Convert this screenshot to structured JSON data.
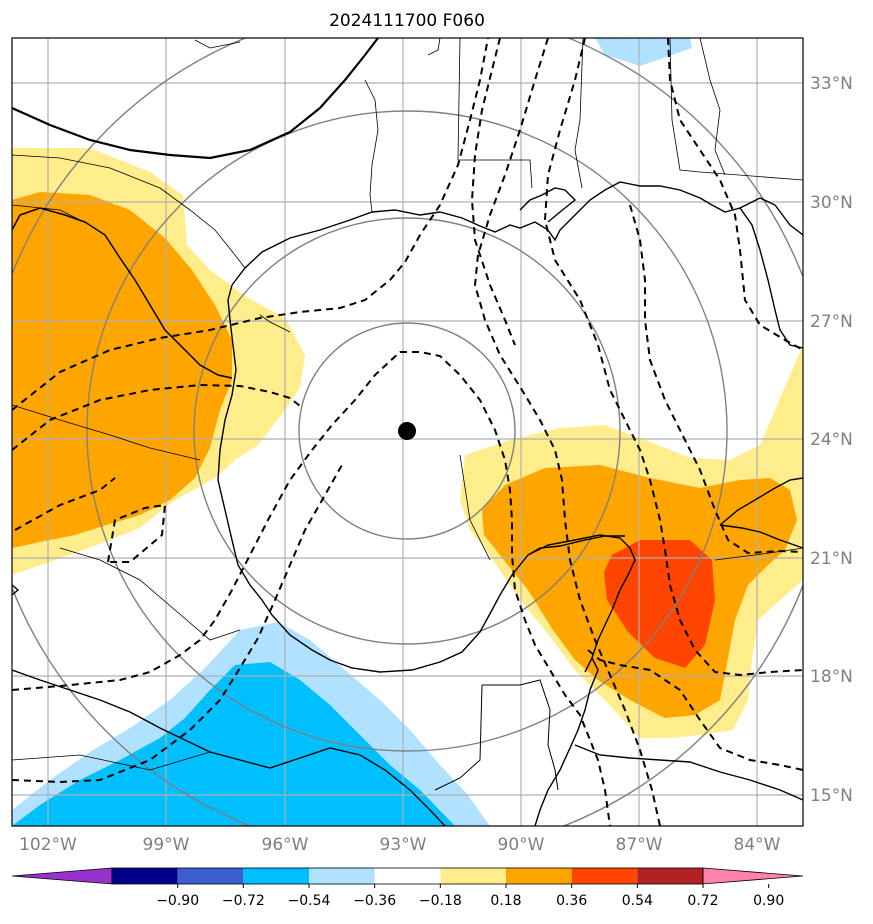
{
  "title": "2024111700 F060",
  "map": {
    "lon_ticks": [
      {
        "lon": -102,
        "label": "102°W"
      },
      {
        "lon": -99,
        "label": "99°W"
      },
      {
        "lon": -96,
        "label": "96°W"
      },
      {
        "lon": -93,
        "label": "93°W"
      },
      {
        "lon": -90,
        "label": "90°W"
      },
      {
        "lon": -87,
        "label": "87°W"
      },
      {
        "lon": -84,
        "label": "84°W"
      }
    ],
    "lat_ticks": [
      {
        "lat": 33,
        "label": "33°N"
      },
      {
        "lat": 30,
        "label": "30°N"
      },
      {
        "lat": 27,
        "label": "27°N"
      },
      {
        "lat": 24,
        "label": "24°N"
      },
      {
        "lat": 21,
        "label": "21°N"
      },
      {
        "lat": 18,
        "label": "18°N"
      },
      {
        "lat": 15,
        "label": "15°N"
      }
    ],
    "center_marker": {
      "lon": -92.9,
      "lat": 24.0
    },
    "shading_colors": {
      "neg_090_plus": "#9932cc",
      "neg_072": "#00008b",
      "neg_054": "#3a5fcd",
      "neg_036": "#00bfff",
      "neg_018": "#b0e2ff",
      "neutral": "#ffffff",
      "pos_018": "#ffec8b",
      "pos_036": "#ffa500",
      "pos_054": "#ff4500",
      "pos_072": "#b22222",
      "pos_090_plus": "#ff82ab"
    }
  },
  "colorbar": {
    "labels": [
      "−0.90",
      "−0.72",
      "−0.54",
      "−0.36",
      "−0.18",
      "0.18",
      "0.36",
      "0.54",
      "0.72",
      "0.90"
    ],
    "colors": [
      "#9932cc",
      "#00008b",
      "#3a5fcd",
      "#00bfff",
      "#b0e2ff",
      "#ffffff",
      "#ffec8b",
      "#ffa500",
      "#ff4500",
      "#b22222",
      "#ff82ab"
    ]
  }
}
